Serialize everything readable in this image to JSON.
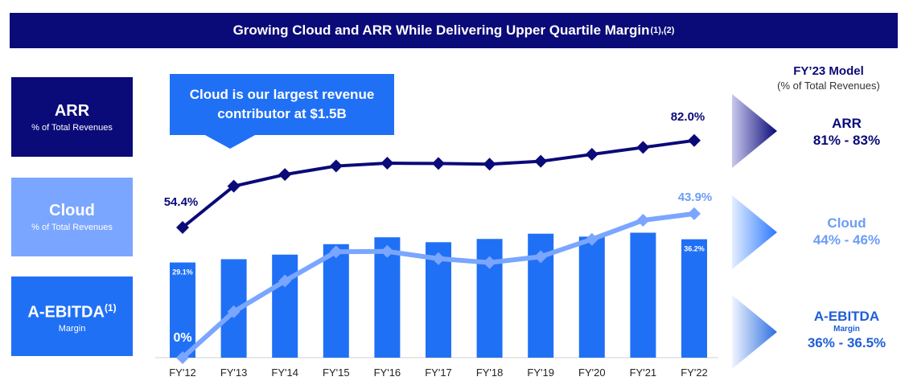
{
  "banner": {
    "title": "Growing Cloud and ARR While Delivering Upper Quartile Margin",
    "footnote": "(1),(2)"
  },
  "left_boxes": {
    "arr": {
      "title": "ARR",
      "subtitle": "% of Total Revenues"
    },
    "cloud": {
      "title": "Cloud",
      "subtitle": "% of Total Revenues"
    },
    "ebitda": {
      "title": "A-EBITDA",
      "footnote": "(1)",
      "subtitle": "Margin"
    }
  },
  "callout": {
    "line1": "Cloud is our largest revenue",
    "line2": "contributor at $1.5B"
  },
  "model": {
    "title": "FY’23 Model",
    "subtitle": "(% of Total Revenues)",
    "arr": {
      "name": "ARR",
      "range": "81% - 83%"
    },
    "cloud": {
      "name": "Cloud",
      "range": "44% - 46%"
    },
    "ebitda": {
      "name": "A-EBITDA",
      "sub": "Margin",
      "range": "36% - 36.5%"
    }
  },
  "colors": {
    "navy": "#0a0a78",
    "bar_blue": "#2070f5",
    "cloud_light": "#7aa6ff",
    "cloud_label": "#6d9cf7"
  },
  "chart_data": {
    "type": "bar",
    "categories": [
      "FY'12",
      "FY'13",
      "FY'14",
      "FY'15",
      "FY'16",
      "FY'17",
      "FY'18",
      "FY'19",
      "FY'20",
      "FY'21",
      "FY'22"
    ],
    "series": [
      {
        "type": "bar",
        "values": [
          29.1,
          30.1,
          31.5,
          34.7,
          36.8,
          35.3,
          36.3,
          37.9,
          37.0,
          38.2,
          36.2
        ]
      },
      {
        "type": "line",
        "values": [
          0,
          14.0,
          23.4,
          32.3,
          32.4,
          30.2,
          29.0,
          30.8,
          36.1,
          41.9,
          43.9
        ]
      },
      {
        "type": "line",
        "values": [
          54.4,
          67.5,
          71.2,
          73.9,
          74.8,
          74.7,
          74.5,
          75.4,
          77.6,
          79.8,
          82.0
        ]
      }
    ],
    "data_labels": {
      "bar_first": "29.1%",
      "bar_last": "36.2%",
      "cloud_first": "0%",
      "cloud_last": "43.9%",
      "arr_first": "54.4%",
      "arr_last": "82.0%"
    },
    "grid": false,
    "legend": "none"
  }
}
